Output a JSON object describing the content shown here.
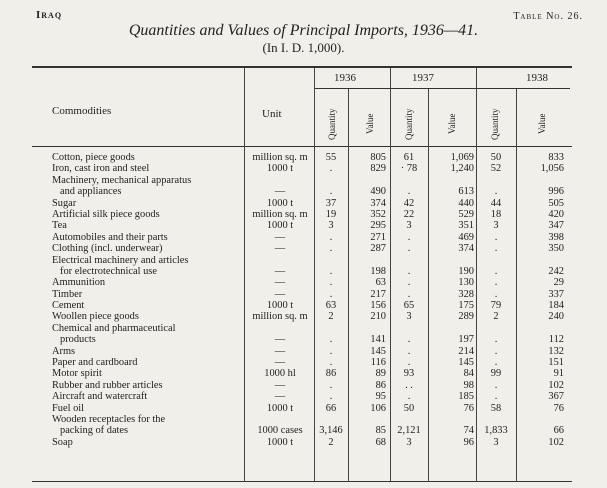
{
  "header": {
    "country": "Iraq",
    "table_no": "Table No. 26.",
    "title": "Quantities and Values of Principal Imports, 1936—41.",
    "subtitle": "(In I. D. 1,000)."
  },
  "columns": {
    "commodities": "Commodities",
    "unit": "Unit",
    "quantity": "Quantity",
    "value": "Value",
    "years": [
      "1936",
      "1937",
      "1938"
    ]
  },
  "rows": [
    {
      "name": "Cotton, piece goods",
      "unit": "million sq. m",
      "q1936": "55",
      "v1936": "805",
      "q1937": "61",
      "v1937": "1,069",
      "q1938": "50",
      "v1938": "833"
    },
    {
      "name": "Iron, cast iron and steel",
      "unit": "1000 t",
      "q1936": ".",
      "v1936": "829",
      "q1937": "· 78",
      "v1937": "1,240",
      "q1938": "52",
      "v1938": "1,056"
    },
    {
      "name": "Machinery, mechanical apparatus",
      "unit": "",
      "q1936": "",
      "v1936": "",
      "q1937": "",
      "v1937": "",
      "q1938": "",
      "v1938": ""
    },
    {
      "name": "and appliances",
      "indent": true,
      "unit": "—",
      "q1936": ".",
      "v1936": "490",
      "q1937": ".",
      "v1937": "613",
      "q1938": ".",
      "v1938": "996"
    },
    {
      "name": "Sugar",
      "unit": "1000 t",
      "q1936": "37",
      "v1936": "374",
      "q1937": "42",
      "v1937": "440",
      "q1938": "44",
      "v1938": "505"
    },
    {
      "name": "Artificial silk piece goods",
      "unit": "million sq. m",
      "q1936": "19",
      "v1936": "352",
      "q1937": "22",
      "v1937": "529",
      "q1938": "18",
      "v1938": "420"
    },
    {
      "name": "Tea",
      "unit": "1000 t",
      "q1936": "3",
      "v1936": "295",
      "q1937": "3",
      "v1937": "351",
      "q1938": "3",
      "v1938": "347"
    },
    {
      "name": "Automobiles and their parts",
      "unit": "—",
      "q1936": ".",
      "v1936": "271",
      "q1937": ".",
      "v1937": "469",
      "q1938": ".",
      "v1938": "398"
    },
    {
      "name": "Clothing (incl. underwear)",
      "unit": "—",
      "q1936": ".",
      "v1936": "287",
      "q1937": ".",
      "v1937": "374",
      "q1938": ".",
      "v1938": "350"
    },
    {
      "name": "Electrical machinery and articles",
      "unit": "",
      "q1936": "",
      "v1936": "",
      "q1937": "",
      "v1937": "",
      "q1938": "",
      "v1938": ""
    },
    {
      "name": "for electrotechnical use",
      "indent": true,
      "unit": "—",
      "q1936": ".",
      "v1936": "198",
      "q1937": ".",
      "v1937": "190",
      "q1938": ".",
      "v1938": "242"
    },
    {
      "name": "Ammunition",
      "unit": "—",
      "q1936": ".",
      "v1936": "63",
      "q1937": ".",
      "v1937": "130",
      "q1938": ".",
      "v1938": "29"
    },
    {
      "name": "Timber",
      "unit": "—",
      "q1936": ".",
      "v1936": "217",
      "q1937": ".",
      "v1937": "328",
      "q1938": ".",
      "v1938": "337"
    },
    {
      "name": "Cement",
      "unit": "1000 t",
      "q1936": "63",
      "v1936": "156",
      "q1937": "65",
      "v1937": "175",
      "q1938": "79",
      "v1938": "184"
    },
    {
      "name": "Woollen piece goods",
      "unit": "million sq. m",
      "q1936": "2",
      "v1936": "210",
      "q1937": "3",
      "v1937": "289",
      "q1938": "2",
      "v1938": "240"
    },
    {
      "name": "Chemical and pharmaceutical",
      "unit": "",
      "q1936": "",
      "v1936": "",
      "q1937": "",
      "v1937": "",
      "q1938": "",
      "v1938": ""
    },
    {
      "name": "products",
      "indent": true,
      "unit": "—",
      "q1936": ".",
      "v1936": "141",
      "q1937": ".",
      "v1937": "197",
      "q1938": ".",
      "v1938": "112"
    },
    {
      "name": "Arms",
      "unit": "—",
      "q1936": ".",
      "v1936": "145",
      "q1937": ".",
      "v1937": "214",
      "q1938": ".",
      "v1938": "132"
    },
    {
      "name": "Paper and cardboard",
      "unit": "—",
      "q1936": ".",
      "v1936": "116",
      "q1937": ".",
      "v1937": "145",
      "q1938": ".",
      "v1938": "151"
    },
    {
      "name": "Motor spirit",
      "unit": "1000 hl",
      "q1936": "86",
      "v1936": "89",
      "q1937": "93",
      "v1937": "84",
      "q1938": "99",
      "v1938": "91"
    },
    {
      "name": "Rubber and rubber articles",
      "unit": "—",
      "q1936": ".",
      "v1936": "86",
      "q1937": ". .",
      "v1937": "98",
      "q1938": ".",
      "v1938": "102"
    },
    {
      "name": "Aircraft and watercraft",
      "unit": "—",
      "q1936": ".",
      "v1936": "95",
      "q1937": ".",
      "v1937": "185",
      "q1938": ".",
      "v1938": "367"
    },
    {
      "name": "Fuel oil",
      "unit": "1000 t",
      "q1936": "66",
      "v1936": "106",
      "q1937": "50",
      "v1937": "76",
      "q1938": "58",
      "v1938": "76"
    },
    {
      "name": "Wooden receptacles for the",
      "unit": "",
      "q1936": "",
      "v1936": "",
      "q1937": "",
      "v1937": "",
      "q1938": "",
      "v1938": ""
    },
    {
      "name": "packing of dates",
      "indent": true,
      "unit": "1000 cases",
      "q1936": "3,146",
      "v1936": "85",
      "q1937": "2,121",
      "v1937": "74",
      "q1938": "1,833",
      "v1938": "66"
    },
    {
      "name": "Soap",
      "unit": "1000 t",
      "q1936": "2",
      "v1936": "68",
      "q1937": "3",
      "v1937": "96",
      "q1938": "3",
      "v1938": "102"
    }
  ]
}
